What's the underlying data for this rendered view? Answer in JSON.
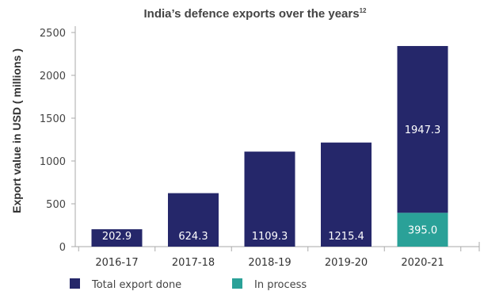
{
  "chart_data": {
    "type": "bar",
    "stacked": true,
    "title": "India’s defence exports over the years",
    "title_superscript": "12",
    "ylabel": "Export value in USD ( millions )",
    "xlabel": "",
    "ylim": [
      0,
      2500
    ],
    "yticks": [
      0,
      500,
      1000,
      1500,
      2000,
      2500
    ],
    "categories": [
      "2016-17",
      "2017-18",
      "2018-19",
      "2019-20",
      "2020-21"
    ],
    "series": [
      {
        "name": "In process",
        "color": "#2aa198",
        "values": [
          0,
          0,
          0,
          0,
          395.0
        ],
        "labels": [
          "",
          "",
          "",
          "",
          "395.0"
        ]
      },
      {
        "name": "Total export done",
        "color": "#25276a",
        "values": [
          202.9,
          624.3,
          1109.3,
          1215.4,
          1947.3
        ],
        "labels": [
          "202.9",
          "624.3",
          "1109.3",
          "1215.4",
          "1947.3"
        ]
      }
    ],
    "legend": {
      "placement": "bottom-left",
      "items": [
        {
          "name": "Total export done",
          "color": "#25276a"
        },
        {
          "name": "In process",
          "color": "#2aa198"
        }
      ]
    },
    "grid": false
  }
}
